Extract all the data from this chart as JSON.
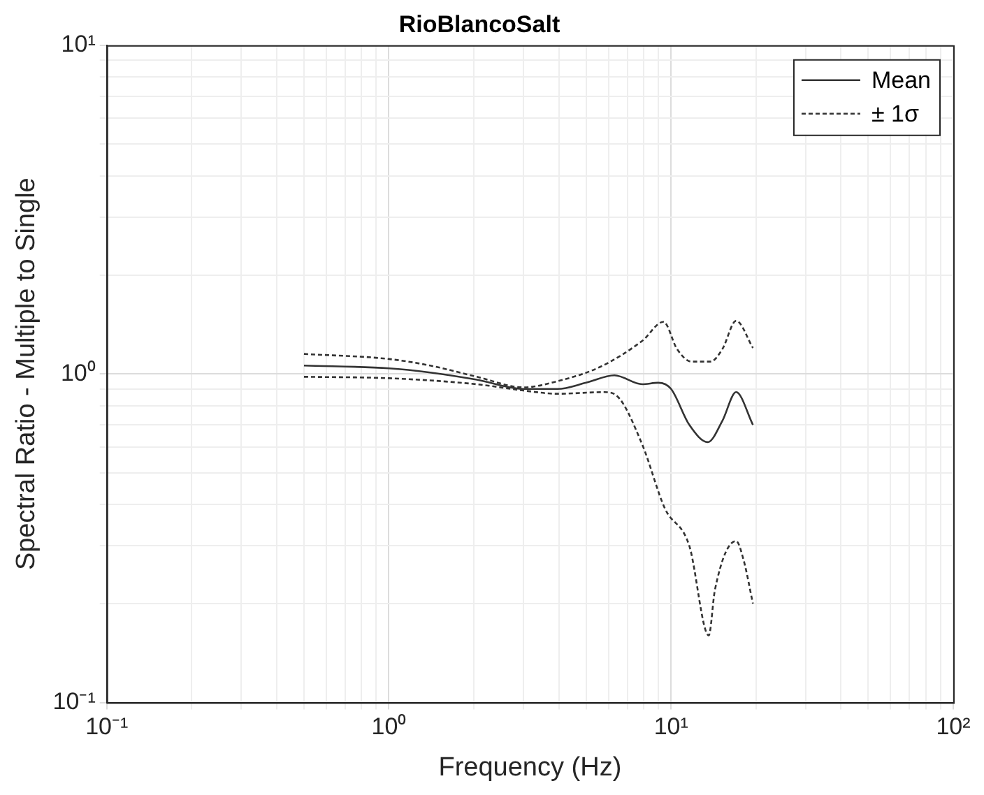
{
  "chart_data": {
    "type": "line",
    "title": "RioBlancoSalt",
    "xlabel": "Frequency (Hz)",
    "ylabel": "Spectral Ratio - Multiple to Single",
    "log": "xy",
    "grid": true,
    "legend": "top right",
    "marker": "none",
    "xlim": [
      0.1,
      100
    ],
    "ylim": [
      0.1,
      10
    ],
    "xticks": [
      {
        "value": 0.1,
        "label": "10⁻¹"
      },
      {
        "value": 0.2,
        "label": null
      },
      {
        "value": 0.3,
        "label": null
      },
      {
        "value": 0.4,
        "label": null
      },
      {
        "value": 0.5,
        "label": null
      },
      {
        "value": 0.6,
        "label": null
      },
      {
        "value": 0.7,
        "label": null
      },
      {
        "value": 0.8,
        "label": null
      },
      {
        "value": 0.9,
        "label": null
      },
      {
        "value": 1,
        "label": "10⁰"
      },
      {
        "value": 2,
        "label": null
      },
      {
        "value": 3,
        "label": null
      },
      {
        "value": 4,
        "label": null
      },
      {
        "value": 5,
        "label": null
      },
      {
        "value": 6,
        "label": null
      },
      {
        "value": 7,
        "label": null
      },
      {
        "value": 8,
        "label": null
      },
      {
        "value": 9,
        "label": null
      },
      {
        "value": 10,
        "label": "10¹"
      },
      {
        "value": 20,
        "label": null
      },
      {
        "value": 30,
        "label": null
      },
      {
        "value": 40,
        "label": null
      },
      {
        "value": 50,
        "label": null
      },
      {
        "value": 60,
        "label": null
      },
      {
        "value": 70,
        "label": null
      },
      {
        "value": 80,
        "label": null
      },
      {
        "value": 90,
        "label": null
      },
      {
        "value": 100,
        "label": "10²"
      }
    ],
    "yticks": [
      {
        "value": 0.1,
        "label": "10⁻¹"
      },
      {
        "value": 0.2,
        "label": null
      },
      {
        "value": 0.3,
        "label": null
      },
      {
        "value": 0.4,
        "label": null
      },
      {
        "value": 0.5,
        "label": null
      },
      {
        "value": 0.6,
        "label": null
      },
      {
        "value": 0.7,
        "label": null
      },
      {
        "value": 0.8,
        "label": null
      },
      {
        "value": 0.9,
        "label": null
      },
      {
        "value": 1,
        "label": "10⁰"
      },
      {
        "value": 2,
        "label": null
      },
      {
        "value": 3,
        "label": null
      },
      {
        "value": 4,
        "label": null
      },
      {
        "value": 5,
        "label": null
      },
      {
        "value": 6,
        "label": null
      },
      {
        "value": 7,
        "label": null
      },
      {
        "value": 8,
        "label": null
      },
      {
        "value": 9,
        "label": null
      },
      {
        "value": 10,
        "label": "10¹"
      }
    ],
    "series": [
      {
        "name": "Mean",
        "color": "#333333",
        "line_style": "solid",
        "x": [
          0.5,
          1.0,
          1.4,
          2.05,
          3,
          3.96,
          5.0,
          6.3,
          7.9,
          9.0,
          10,
          11.6,
          13.5,
          15.2,
          17.0,
          19.5
        ],
        "values": [
          1.06,
          1.04,
          1.01,
          0.96,
          0.9,
          0.9,
          0.94,
          0.99,
          0.93,
          0.94,
          0.9,
          0.7,
          0.62,
          0.72,
          0.88,
          0.7
        ]
      },
      {
        "name": "± 1σ",
        "color": "#333333",
        "line_style": "dashed",
        "x": [
          0.5,
          1.0,
          1.4,
          2.05,
          3,
          3.96,
          5.6,
          7.9,
          9.4,
          10.5,
          11.8,
          13.8,
          15.2,
          17.0,
          19.5
        ],
        "values": [
          1.15,
          1.11,
          1.06,
          0.98,
          0.91,
          0.95,
          1.05,
          1.26,
          1.44,
          1.19,
          1.09,
          1.09,
          1.19,
          1.45,
          1.2
        ]
      },
      {
        "color": "#333333",
        "line_style": "dashed",
        "x": [
          0.5,
          1.0,
          2.05,
          3,
          3.96,
          5.8,
          6.4,
          7.9,
          9.5,
          11.6,
          13.6,
          14.3,
          17.0,
          18.1,
          19.5
        ],
        "values": [
          0.98,
          0.97,
          0.93,
          0.89,
          0.87,
          0.88,
          0.86,
          0.61,
          0.39,
          0.3,
          0.16,
          0.22,
          0.31,
          0.27,
          0.2
        ]
      }
    ]
  }
}
